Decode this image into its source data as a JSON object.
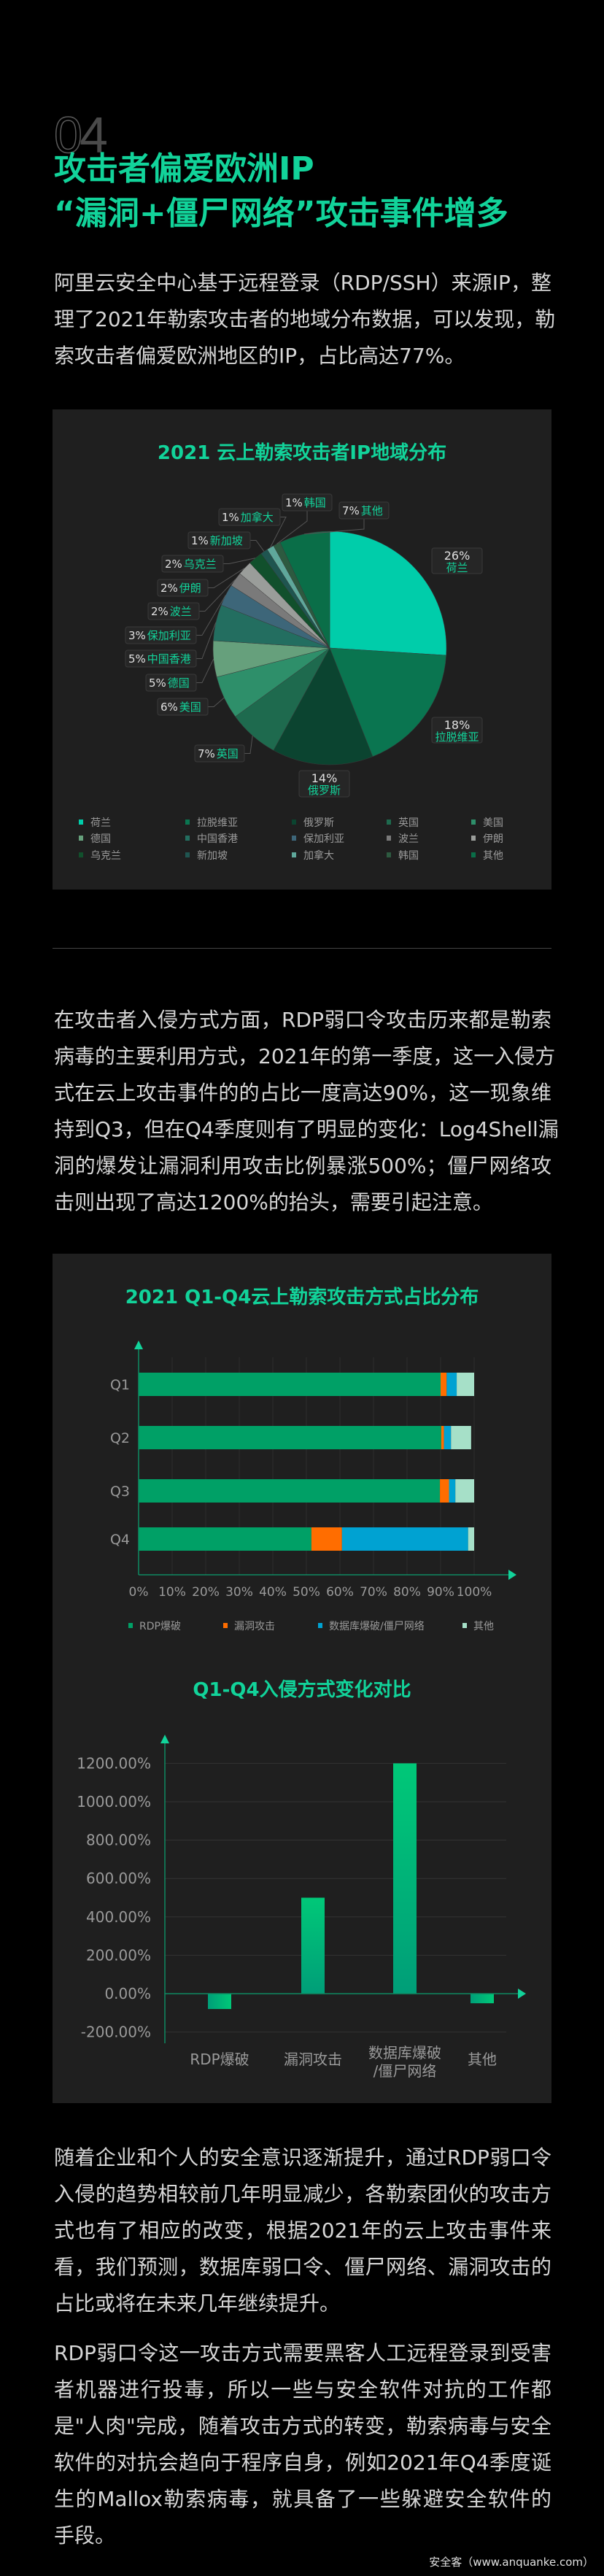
{
  "section": {
    "number": "04",
    "title_lines": [
      "攻击者偏爱欧洲IP",
      "“漏洞+僵尸网络”攻击事件增多"
    ]
  },
  "paragraphs": [
    [
      "阿里云安全中心基于远程登录（RDP/SSH）来源IP，整",
      "理了2021年勒索攻击者的地域分布数据，可以发现，勒",
      "索攻击者偏爱欧洲地区的IP，占比高达77%。"
    ],
    [
      "在攻击者入侵方式方面，RDP弱口令攻击历来都是勒索",
      "病毒的主要利用方式，2021年的第一季度，这一入侵方",
      "式在云上攻击事件的的占比一度高达90%，这一现象维",
      "持到Q3，但在Q4季度则有了明显的变化：Log4Shell漏",
      "洞的爆发让漏洞利用攻击比例暴涨500%；僵尸网络攻",
      "击则出现了高达1200%的抬头，需要引起注意。"
    ],
    [
      "随着企业和个人的安全意识逐渐提升，通过RDP弱口令",
      "入侵的趋势相较前几年明显减少，各勒索团伙的攻击方",
      "式也有了相应的改变，根据2021年的云上攻击事件来",
      "看，我们预测，数据库弱口令、僵尸网络、漏洞攻击的",
      "占比或将在未来几年继续提升。"
    ],
    [
      "RDP弱口令这一攻击方式需要黑客人工远程登录到受害",
      "者机器进行投毒，所以一些与安全软件对抗的工作都",
      "是\"人肉\"完成，随着攻击方式的转变，勒索病毒与安全",
      "软件的对抗会趋向于程序自身，例如2021年Q4季度诞",
      "生的Mallox勒索病毒，就具备了一些躲避安全软件的",
      "手段。"
    ]
  ],
  "watermark": "安全客（www.anquanke.com）",
  "colors": {
    "accent": "#12d39a",
    "panel": "#1f1f1f",
    "text": "#d6d6d6"
  },
  "chart_data": [
    {
      "type": "pie",
      "title": "2021 云上勒索攻击者IP地域分布",
      "unit": "%",
      "legend_position": "bottom",
      "slices": [
        {
          "name": "荷兰",
          "value": 26,
          "label": "26%",
          "color": "#00cdaa"
        },
        {
          "name": "拉脱维亚",
          "value": 18,
          "label": "18%",
          "color": "#0a7550"
        },
        {
          "name": "俄罗斯",
          "value": 14,
          "label": "14%",
          "color": "#0b4430"
        },
        {
          "name": "英国",
          "value": 7,
          "label": "7%",
          "color": "#1e6a4e"
        },
        {
          "name": "美国",
          "value": 6,
          "label": "6%",
          "color": "#2e8f6a"
        },
        {
          "name": "德国",
          "value": 5,
          "label": "5%",
          "color": "#66a07c"
        },
        {
          "name": "中国香港",
          "value": 5,
          "label": "5%",
          "color": "#236e60"
        },
        {
          "name": "保加利亚",
          "value": 3,
          "label": "3%",
          "color": "#3d6679"
        },
        {
          "name": "波兰",
          "value": 2,
          "label": "2%",
          "color": "#7a7a7a"
        },
        {
          "name": "伊朗",
          "value": 2,
          "label": "2%",
          "color": "#9a9d9a"
        },
        {
          "name": "乌克兰",
          "value": 2,
          "label": "2%",
          "color": "#11502c"
        },
        {
          "name": "新加坡",
          "value": 1,
          "label": "1%",
          "color": "#1f5550"
        },
        {
          "name": "加拿大",
          "value": 1,
          "label": "1%",
          "color": "#5fa89b"
        },
        {
          "name": "韩国",
          "value": 1,
          "label": "1%",
          "color": "#2d5a40"
        },
        {
          "name": "其他",
          "value": 7,
          "label": "7%",
          "color": "#0a6e48"
        }
      ]
    },
    {
      "type": "bar",
      "orientation": "horizontal",
      "stacked": true,
      "title": "2021 Q1-Q4云上勒索攻击方式占比分布",
      "categories": [
        "Q1",
        "Q2",
        "Q3",
        "Q4"
      ],
      "xlim": [
        0,
        100
      ],
      "xticks": [
        "0%",
        "10%",
        "20%",
        "30%",
        "40%",
        "50%",
        "60%",
        "70%",
        "80%",
        "90%",
        "100%"
      ],
      "grid": true,
      "legend_position": "bottom",
      "series": [
        {
          "name": "RDP爆破",
          "color": "#00a066",
          "values": [
            90,
            90.2,
            89.8,
            51.5
          ]
        },
        {
          "name": "漏洞攻击",
          "color": "#ff6d00",
          "values": [
            1.8,
            0.8,
            2.7,
            9.1
          ]
        },
        {
          "name": "数据库爆破/僵尸网络",
          "color": "#00a2d2",
          "values": [
            3,
            2.1,
            1.9,
            37.6
          ]
        },
        {
          "name": "其他",
          "color": "#a6e0c8",
          "values": [
            5.2,
            6,
            5.6,
            1.8
          ]
        }
      ]
    },
    {
      "type": "bar",
      "title": "Q1-Q4入侵方式变化对比",
      "categories": [
        "RDP爆破",
        "漏洞攻击",
        "数据库爆破\n/僵尸网络",
        "其他"
      ],
      "category_lines": [
        [
          "RDP爆破"
        ],
        [
          "漏洞攻击"
        ],
        [
          "数据库爆破",
          "/僵尸网络"
        ],
        [
          "其他"
        ]
      ],
      "values": [
        -80,
        500,
        1200,
        -50
      ],
      "unit": "%",
      "ylim": [
        -200,
        1200
      ],
      "yticks": [
        "-200.00%",
        "0.00%",
        "200.00%",
        "400.00%",
        "600.00%",
        "800.00%",
        "1000.00%",
        "1200.00%"
      ],
      "ytick_values": [
        -200,
        0,
        200,
        400,
        600,
        800,
        1000,
        1200
      ],
      "grid": true,
      "color": "#00c878"
    }
  ]
}
